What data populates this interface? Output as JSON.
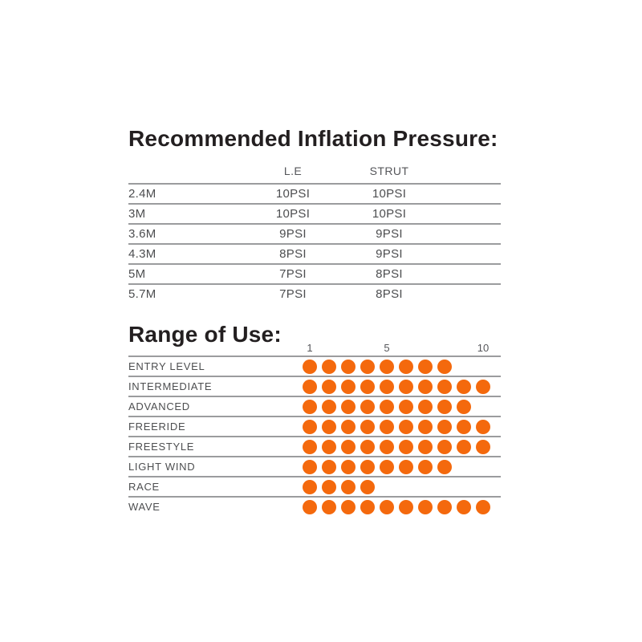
{
  "pressure": {
    "title": "Recommended Inflation Pressure:",
    "columns": [
      "",
      "L.E",
      "STRUT"
    ],
    "rows": [
      {
        "size": "2.4M",
        "le": "10PSI",
        "strut": "10PSI"
      },
      {
        "size": "3M",
        "le": "10PSI",
        "strut": "10PSI"
      },
      {
        "size": "3.6M",
        "le": "9PSI",
        "strut": "9PSI"
      },
      {
        "size": "4.3M",
        "le": "8PSI",
        "strut": "9PSI"
      },
      {
        "size": "5M",
        "le": "7PSI",
        "strut": "8PSI"
      },
      {
        "size": "5.7M",
        "le": "7PSI",
        "strut": "8PSI"
      }
    ]
  },
  "range": {
    "title": "Range of Use:",
    "scale": {
      "min": "1",
      "mid": "5",
      "max": "10"
    },
    "max_dots": 10,
    "dot_color": "#f4690d",
    "rows": [
      {
        "label": "ENTRY LEVEL",
        "dots": 8
      },
      {
        "label": "INTERMEDIATE",
        "dots": 10
      },
      {
        "label": "ADVANCED",
        "dots": 9
      },
      {
        "label": "FREERIDE",
        "dots": 10
      },
      {
        "label": "FREESTYLE",
        "dots": 10
      },
      {
        "label": "LIGHT WIND",
        "dots": 8
      },
      {
        "label": "RACE",
        "dots": 4
      },
      {
        "label": "WAVE",
        "dots": 10
      }
    ]
  },
  "colors": {
    "title_text": "#231f20",
    "body_text": "#4d4e50",
    "rule_gray": "#9b9c9e",
    "dot_orange": "#f4690d"
  },
  "chart_data": [
    {
      "type": "table",
      "title": "Recommended Inflation Pressure:",
      "columns": [
        "",
        "L.E",
        "STRUT"
      ],
      "rows": [
        [
          "2.4M",
          "10PSI",
          "10PSI"
        ],
        [
          "3M",
          "10PSI",
          "10PSI"
        ],
        [
          "3.6M",
          "9PSI",
          "9PSI"
        ],
        [
          "4.3M",
          "8PSI",
          "9PSI"
        ],
        [
          "5M",
          "7PSI",
          "8PSI"
        ],
        [
          "5.7M",
          "7PSI",
          "8PSI"
        ]
      ]
    },
    {
      "type": "scatter",
      "title": "Range of Use:",
      "categories": [
        "ENTRY LEVEL",
        "INTERMEDIATE",
        "ADVANCED",
        "FREERIDE",
        "FREESTYLE",
        "LIGHT WIND",
        "RACE",
        "WAVE"
      ],
      "values": [
        8,
        10,
        9,
        10,
        10,
        8,
        4,
        10
      ],
      "xlabel": "",
      "ylabel": "",
      "x_ticks": [
        "1",
        "5",
        "10"
      ],
      "xlim": [
        1,
        10
      ],
      "grid": false,
      "legend": false,
      "marker": "filled-dot-row",
      "marker_color": "#f4690d"
    }
  ]
}
